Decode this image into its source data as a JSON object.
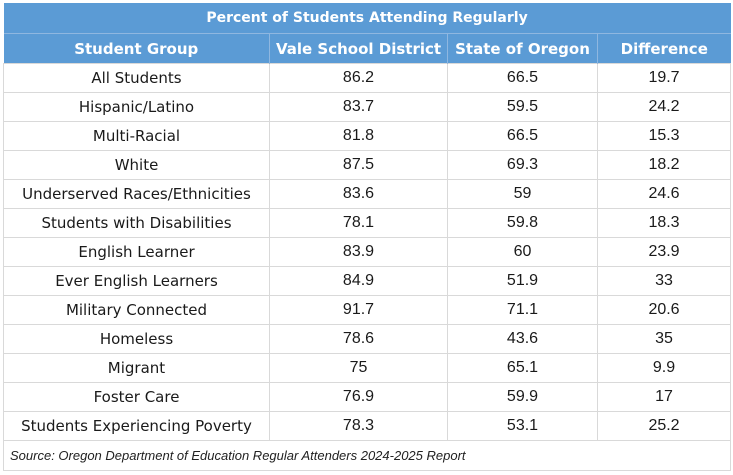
{
  "table": {
    "title": "Percent of Students Attending Regularly",
    "columns": [
      "Student Group",
      "Vale School District",
      "State of Oregon",
      "Difference"
    ],
    "rows": [
      {
        "group": "All Students",
        "vale": "86.2",
        "oregon": "66.5",
        "difference": "19.7"
      },
      {
        "group": "Hispanic/Latino",
        "vale": "83.7",
        "oregon": "59.5",
        "difference": "24.2"
      },
      {
        "group": "Multi-Racial",
        "vale": "81.8",
        "oregon": "66.5",
        "difference": "15.3"
      },
      {
        "group": "White",
        "vale": "87.5",
        "oregon": "69.3",
        "difference": "18.2"
      },
      {
        "group": "Underserved Races/Ethnicities",
        "vale": "83.6",
        "oregon": "59",
        "difference": "24.6"
      },
      {
        "group": "Students with Disabilities",
        "vale": "78.1",
        "oregon": "59.8",
        "difference": "18.3"
      },
      {
        "group": "English Learner",
        "vale": "83.9",
        "oregon": "60",
        "difference": "23.9"
      },
      {
        "group": "Ever English Learners",
        "vale": "84.9",
        "oregon": "51.9",
        "difference": "33"
      },
      {
        "group": "Military Connected",
        "vale": "91.7",
        "oregon": "71.1",
        "difference": "20.6"
      },
      {
        "group": "Homeless",
        "vale": "78.6",
        "oregon": "43.6",
        "difference": "35"
      },
      {
        "group": "Migrant",
        "vale": "75",
        "oregon": "65.1",
        "difference": "9.9"
      },
      {
        "group": "Foster Care",
        "vale": "76.9",
        "oregon": "59.9",
        "difference": "17"
      },
      {
        "group": "Students Experiencing Poverty",
        "vale": "78.3",
        "oregon": "53.1",
        "difference": "25.2"
      }
    ],
    "source": "Source: Oregon Department of Education Regular Attenders 2024-2025 Report"
  },
  "colors": {
    "header_bg": "#5b9bd5",
    "header_text": "#ffffff",
    "grid": "#d9d9d9"
  }
}
